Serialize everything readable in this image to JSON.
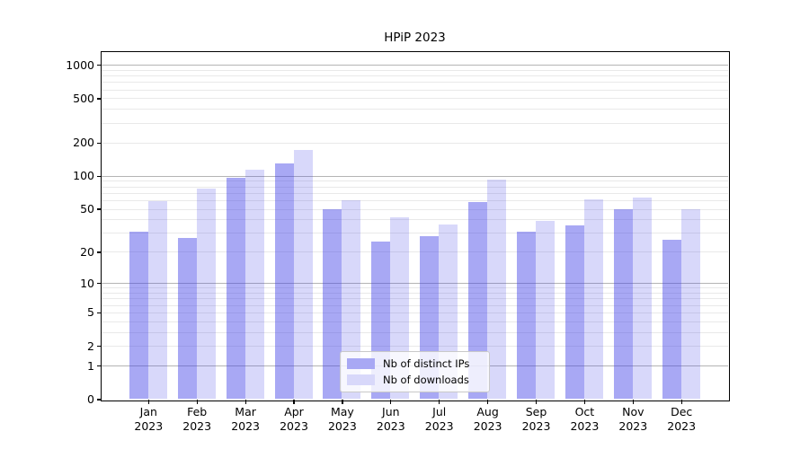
{
  "chart_data": {
    "type": "bar",
    "title": "HPiP 2023",
    "categories": [
      "Jan",
      "Feb",
      "Mar",
      "Apr",
      "May",
      "Jun",
      "Jul",
      "Aug",
      "Sep",
      "Oct",
      "Nov",
      "Dec"
    ],
    "year_label": "2023",
    "series": [
      {
        "name": "Nb of distinct IPs",
        "values": [
          31,
          27,
          95,
          130,
          50,
          25,
          28,
          58,
          31,
          35,
          50,
          26
        ],
        "bar_color": "rgba(62,62,230,0.45)",
        "legend_color": "#a8a8f4"
      },
      {
        "name": "Nb of downloads",
        "values": [
          59,
          76,
          114,
          170,
          60,
          42,
          36,
          92,
          39,
          61,
          64,
          50
        ],
        "bar_color": "rgba(62,62,230,0.20)",
        "legend_color": "#d8d8fa"
      }
    ],
    "yscale": "symlog",
    "yticks": [
      0,
      1,
      2,
      5,
      10,
      20,
      50,
      100,
      200,
      500,
      1000
    ],
    "ylim": [
      0,
      1312
    ],
    "xlabel": "",
    "ylabel": "",
    "grid": {
      "major_lines": [
        1,
        10,
        100,
        1000
      ],
      "major_color": "#b4b4b4",
      "minor_color": "#e9e9e9"
    },
    "legend_position": "lower center",
    "axis_color": "#000000",
    "background_color": "#ffffff"
  }
}
